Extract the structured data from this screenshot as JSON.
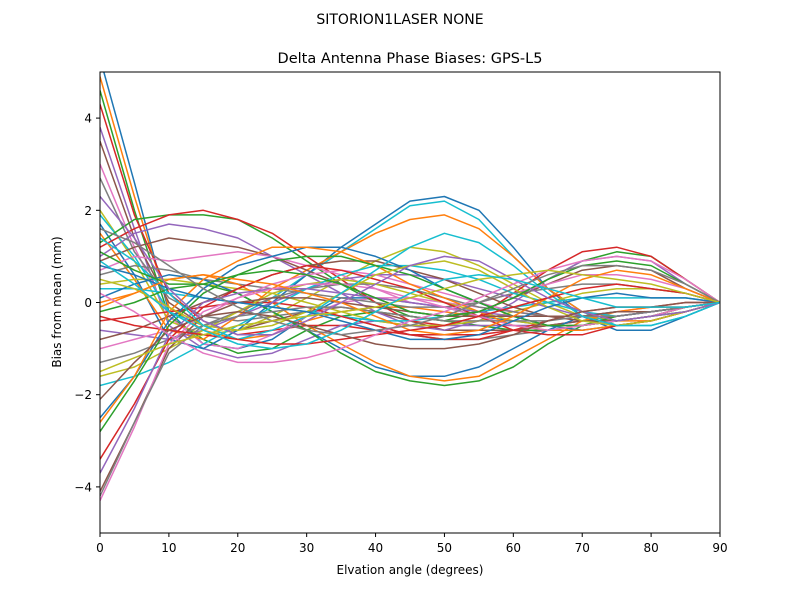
{
  "figure": {
    "suptitle": "SITORION1LASER  NONE"
  },
  "chart_data": {
    "type": "line",
    "title": "Delta Antenna Phase Biases: GPS-L5",
    "xlabel": "Elvation angle (degrees)",
    "ylabel": "Bias from mean (mm)",
    "xlim": [
      0,
      90
    ],
    "ylim": [
      -5,
      5
    ],
    "xticks": [
      0,
      10,
      20,
      30,
      40,
      50,
      60,
      70,
      80,
      90
    ],
    "yticks": [
      -4,
      -2,
      0,
      2,
      4
    ],
    "grid": false,
    "legend": "none",
    "x": [
      0,
      5,
      10,
      15,
      20,
      25,
      30,
      35,
      40,
      45,
      50,
      55,
      60,
      65,
      70,
      75,
      80,
      85,
      90
    ],
    "colors": [
      "#1f77b4",
      "#ff7f0e",
      "#2ca02c",
      "#d62728",
      "#9467bd",
      "#8c564b",
      "#e377c2",
      "#7f7f7f",
      "#bcbd22",
      "#17becf"
    ],
    "series": [
      {
        "values": [
          5.3,
          2.6,
          -0.2,
          -0.9,
          -1.0,
          -0.8,
          -0.3,
          0.1,
          0.1,
          0.0,
          -0.1,
          -0.3,
          -0.4,
          -0.5,
          -0.5,
          -0.4,
          -0.3,
          -0.1,
          0.0
        ]
      },
      {
        "values": [
          4.9,
          2.3,
          -0.1,
          -0.6,
          -0.8,
          -0.7,
          -0.4,
          -0.2,
          -0.1,
          -0.1,
          -0.2,
          -0.3,
          -0.3,
          -0.3,
          -0.3,
          -0.3,
          -0.2,
          -0.1,
          0.0
        ]
      },
      {
        "values": [
          4.6,
          2.0,
          -0.3,
          -0.8,
          -1.1,
          -1.0,
          -0.6,
          -0.3,
          -0.2,
          -0.3,
          -0.4,
          -0.5,
          -0.6,
          -0.6,
          -0.5,
          -0.4,
          -0.3,
          -0.1,
          0.0
        ]
      },
      {
        "values": [
          4.3,
          1.9,
          0.2,
          -0.4,
          -0.7,
          -0.6,
          -0.5,
          -0.5,
          -0.6,
          -0.7,
          -0.7,
          -0.7,
          -0.6,
          -0.5,
          -0.4,
          -0.3,
          -0.2,
          -0.1,
          0.0
        ]
      },
      {
        "values": [
          3.8,
          1.6,
          -0.5,
          -1.0,
          -1.2,
          -1.1,
          -0.8,
          -0.5,
          -0.4,
          -0.5,
          -0.5,
          -0.5,
          -0.5,
          -0.5,
          -0.4,
          -0.3,
          -0.2,
          -0.1,
          0.0
        ]
      },
      {
        "values": [
          3.5,
          1.4,
          0.0,
          -0.5,
          -0.6,
          -0.4,
          -0.2,
          -0.1,
          -0.2,
          -0.4,
          -0.6,
          -0.6,
          -0.6,
          -0.5,
          -0.4,
          -0.3,
          -0.2,
          -0.1,
          0.0
        ]
      },
      {
        "values": [
          3.0,
          1.2,
          -0.3,
          -0.9,
          -1.0,
          -0.7,
          -0.3,
          0.0,
          0.1,
          0.1,
          0.0,
          -0.1,
          -0.2,
          -0.3,
          -0.3,
          -0.2,
          -0.1,
          -0.1,
          0.0
        ]
      },
      {
        "values": [
          2.7,
          1.1,
          0.1,
          -0.3,
          -0.4,
          -0.3,
          -0.2,
          -0.3,
          -0.5,
          -0.7,
          -0.8,
          -0.8,
          -0.7,
          -0.6,
          -0.5,
          -0.4,
          -0.3,
          -0.1,
          0.0
        ]
      },
      {
        "values": [
          2.0,
          0.9,
          -0.4,
          -0.7,
          -0.6,
          -0.3,
          0.1,
          0.5,
          0.9,
          1.2,
          1.1,
          0.8,
          0.4,
          0.0,
          -0.3,
          -0.4,
          -0.3,
          -0.2,
          0.0
        ]
      },
      {
        "values": [
          1.9,
          1.0,
          -0.2,
          -0.5,
          -0.3,
          0.1,
          0.6,
          1.1,
          1.6,
          2.1,
          2.2,
          1.8,
          1.0,
          0.3,
          -0.2,
          -0.5,
          -0.5,
          -0.3,
          0.0
        ]
      },
      {
        "values": [
          1.7,
          0.6,
          -0.8,
          -1.0,
          -0.6,
          0.0,
          0.6,
          1.2,
          1.7,
          2.2,
          2.3,
          2.0,
          1.2,
          0.3,
          -0.3,
          -0.6,
          -0.6,
          -0.3,
          0.0
        ]
      },
      {
        "values": [
          1.5,
          0.5,
          -0.6,
          -0.8,
          -0.3,
          0.3,
          0.7,
          1.1,
          1.5,
          1.8,
          1.9,
          1.6,
          1.0,
          0.3,
          -0.2,
          -0.4,
          -0.4,
          -0.2,
          0.0
        ]
      },
      {
        "values": [
          1.3,
          1.8,
          1.9,
          1.9,
          1.8,
          1.4,
          0.9,
          0.4,
          0.0,
          -0.3,
          -0.4,
          -0.2,
          0.1,
          0.5,
          0.9,
          1.1,
          1.0,
          0.5,
          0.0
        ]
      },
      {
        "values": [
          1.2,
          1.6,
          1.9,
          2.0,
          1.8,
          1.5,
          1.0,
          0.5,
          0.0,
          -0.4,
          -0.5,
          -0.3,
          0.2,
          0.7,
          1.1,
          1.2,
          1.0,
          0.5,
          0.0
        ]
      },
      {
        "values": [
          1.0,
          1.5,
          1.7,
          1.6,
          1.4,
          1.0,
          0.6,
          0.2,
          -0.2,
          -0.5,
          -0.6,
          -0.4,
          0.0,
          0.5,
          0.9,
          1.0,
          0.9,
          0.4,
          0.0
        ]
      },
      {
        "values": [
          0.9,
          1.2,
          1.4,
          1.3,
          1.2,
          1.0,
          0.7,
          0.4,
          0.1,
          -0.2,
          -0.3,
          -0.2,
          0.1,
          0.4,
          0.7,
          0.8,
          0.7,
          0.3,
          0.0
        ]
      },
      {
        "values": [
          0.7,
          1.0,
          0.9,
          1.0,
          1.1,
          1.0,
          0.8,
          0.6,
          0.3,
          0.0,
          -0.1,
          0.0,
          0.2,
          0.4,
          0.6,
          0.6,
          0.5,
          0.3,
          0.0
        ]
      },
      {
        "values": [
          0.6,
          0.8,
          0.7,
          0.5,
          0.4,
          0.3,
          0.2,
          0.1,
          0.0,
          -0.1,
          -0.1,
          0.0,
          0.2,
          0.3,
          0.4,
          0.4,
          0.3,
          0.2,
          0.0
        ]
      },
      {
        "values": [
          0.4,
          0.5,
          0.5,
          0.4,
          0.3,
          0.2,
          0.0,
          -0.2,
          -0.4,
          -0.5,
          -0.5,
          -0.4,
          -0.2,
          0.0,
          0.2,
          0.3,
          0.3,
          0.2,
          0.0
        ]
      },
      {
        "values": [
          0.3,
          0.3,
          0.2,
          0.1,
          0.0,
          -0.1,
          -0.2,
          -0.3,
          -0.4,
          -0.4,
          -0.3,
          -0.2,
          -0.1,
          0.0,
          0.1,
          0.1,
          0.1,
          0.1,
          0.0
        ]
      },
      {
        "values": [
          0.1,
          0.4,
          0.6,
          0.5,
          0.2,
          -0.2,
          -0.6,
          -1.0,
          -1.4,
          -1.6,
          -1.6,
          -1.4,
          -1.0,
          -0.6,
          -0.3,
          -0.2,
          -0.2,
          -0.1,
          0.0
        ]
      },
      {
        "values": [
          0.0,
          0.2,
          0.5,
          0.6,
          0.4,
          0.0,
          -0.5,
          -0.9,
          -1.3,
          -1.6,
          -1.7,
          -1.6,
          -1.2,
          -0.8,
          -0.4,
          -0.2,
          -0.1,
          -0.1,
          0.0
        ]
      },
      {
        "values": [
          -0.2,
          0.0,
          0.3,
          0.4,
          0.2,
          -0.2,
          -0.6,
          -1.1,
          -1.5,
          -1.7,
          -1.8,
          -1.7,
          -1.4,
          -0.9,
          -0.5,
          -0.3,
          -0.2,
          -0.1,
          0.0
        ]
      },
      {
        "values": [
          -0.4,
          -0.3,
          -0.2,
          -0.1,
          0.0,
          0.0,
          -0.1,
          -0.3,
          -0.5,
          -0.7,
          -0.8,
          -0.8,
          -0.6,
          -0.4,
          -0.2,
          -0.1,
          -0.1,
          0.0,
          0.0
        ]
      },
      {
        "values": [
          -0.6,
          -0.7,
          -0.8,
          -0.6,
          -0.3,
          0.0,
          0.3,
          0.5,
          0.6,
          0.6,
          0.5,
          0.3,
          0.1,
          -0.1,
          -0.3,
          -0.3,
          -0.2,
          -0.1,
          0.0
        ]
      },
      {
        "values": [
          -0.8,
          -0.6,
          -0.3,
          0.0,
          0.3,
          0.6,
          0.8,
          0.9,
          0.9,
          0.7,
          0.5,
          0.2,
          -0.1,
          -0.3,
          -0.4,
          -0.4,
          -0.3,
          -0.1,
          0.0
        ]
      },
      {
        "values": [
          -1.0,
          -0.8,
          -0.6,
          -0.3,
          0.1,
          0.4,
          0.6,
          0.7,
          0.6,
          0.4,
          0.2,
          0.0,
          -0.2,
          -0.3,
          -0.3,
          -0.3,
          -0.2,
          -0.1,
          0.0
        ]
      },
      {
        "values": [
          -1.3,
          -1.1,
          -0.8,
          -0.5,
          -0.2,
          0.1,
          0.3,
          0.4,
          0.4,
          0.3,
          0.1,
          -0.1,
          -0.2,
          -0.3,
          -0.3,
          -0.2,
          -0.2,
          -0.1,
          0.0
        ]
      },
      {
        "values": [
          -1.6,
          -1.4,
          -1.0,
          -0.6,
          -0.2,
          0.2,
          0.4,
          0.5,
          0.4,
          0.2,
          0.0,
          -0.2,
          -0.4,
          -0.5,
          -0.5,
          -0.4,
          -0.3,
          -0.1,
          0.0
        ]
      },
      {
        "values": [
          -1.8,
          -1.6,
          -1.3,
          -0.9,
          -0.5,
          -0.1,
          0.3,
          0.6,
          0.8,
          0.8,
          0.7,
          0.5,
          0.2,
          0.0,
          -0.2,
          -0.3,
          -0.2,
          -0.1,
          0.0
        ]
      },
      {
        "values": [
          -2.5,
          -1.6,
          -0.4,
          0.3,
          0.8,
          1.0,
          1.2,
          1.2,
          1.0,
          0.7,
          0.3,
          0.0,
          -0.3,
          -0.5,
          -0.6,
          -0.5,
          -0.4,
          -0.2,
          0.0
        ]
      },
      {
        "values": [
          -2.6,
          -1.6,
          -0.2,
          0.5,
          0.9,
          1.2,
          1.2,
          1.1,
          0.8,
          0.4,
          0.1,
          -0.2,
          -0.5,
          -0.6,
          -0.6,
          -0.5,
          -0.4,
          -0.2,
          0.0
        ]
      },
      {
        "values": [
          -2.8,
          -1.7,
          -0.5,
          0.2,
          0.6,
          0.9,
          1.0,
          1.0,
          0.8,
          0.6,
          0.3,
          0.0,
          -0.3,
          -0.5,
          -0.5,
          -0.4,
          -0.3,
          -0.2,
          0.0
        ]
      },
      {
        "values": [
          -3.4,
          -2.2,
          -0.8,
          -0.1,
          0.3,
          0.6,
          0.8,
          0.7,
          0.5,
          0.3,
          0.0,
          -0.3,
          -0.6,
          -0.7,
          -0.7,
          -0.5,
          -0.4,
          -0.2,
          0.0
        ]
      },
      {
        "values": [
          -3.7,
          -2.3,
          -0.7,
          0.0,
          0.2,
          0.3,
          0.3,
          0.2,
          0.1,
          0.0,
          -0.1,
          -0.2,
          -0.3,
          -0.3,
          -0.3,
          -0.3,
          -0.2,
          -0.1,
          0.0
        ]
      },
      {
        "values": [
          -4.1,
          -2.6,
          -1.0,
          -0.3,
          0.0,
          0.1,
          0.1,
          0.0,
          -0.1,
          -0.2,
          -0.3,
          -0.3,
          -0.3,
          -0.3,
          -0.3,
          -0.2,
          -0.2,
          -0.1,
          0.0
        ]
      },
      {
        "values": [
          -4.3,
          -2.7,
          -0.9,
          -0.2,
          0.1,
          0.3,
          0.4,
          0.4,
          0.3,
          0.1,
          -0.1,
          -0.3,
          -0.5,
          -0.6,
          -0.5,
          -0.4,
          -0.3,
          -0.1,
          0.0
        ]
      },
      {
        "values": [
          -4.2,
          -2.6,
          -1.1,
          -0.5,
          -0.3,
          -0.2,
          -0.1,
          -0.1,
          -0.2,
          -0.3,
          -0.4,
          -0.4,
          -0.4,
          -0.4,
          -0.3,
          -0.3,
          -0.2,
          -0.1,
          0.0
        ]
      },
      {
        "values": [
          0.5,
          0.3,
          -0.1,
          -0.5,
          -0.6,
          -0.5,
          -0.2,
          0.2,
          0.6,
          0.8,
          0.9,
          0.7,
          0.3,
          -0.1,
          -0.4,
          -0.5,
          -0.4,
          -0.2,
          0.0
        ]
      },
      {
        "values": [
          1.4,
          0.9,
          0.2,
          -0.5,
          -0.8,
          -0.6,
          -0.3,
          0.2,
          0.7,
          1.2,
          1.5,
          1.3,
          0.8,
          0.2,
          -0.3,
          -0.5,
          -0.5,
          -0.3,
          0.0
        ]
      },
      {
        "values": [
          0.8,
          0.6,
          0.3,
          0.1,
          0.0,
          -0.1,
          -0.2,
          -0.4,
          -0.6,
          -0.8,
          -0.8,
          -0.7,
          -0.4,
          -0.1,
          0.1,
          0.2,
          0.1,
          0.1,
          0.0
        ]
      },
      {
        "values": [
          -0.1,
          0.2,
          0.5,
          0.6,
          0.5,
          0.4,
          0.2,
          0.0,
          -0.3,
          -0.6,
          -0.7,
          -0.6,
          -0.3,
          0.1,
          0.5,
          0.7,
          0.6,
          0.3,
          0.0
        ]
      },
      {
        "values": [
          1.1,
          0.7,
          0.4,
          0.4,
          0.6,
          0.7,
          0.6,
          0.4,
          0.1,
          -0.2,
          -0.3,
          -0.2,
          0.1,
          0.5,
          0.8,
          0.9,
          0.8,
          0.4,
          0.0
        ]
      },
      {
        "values": [
          -0.3,
          -0.5,
          -0.6,
          -0.7,
          -0.8,
          -0.9,
          -0.9,
          -0.8,
          -0.7,
          -0.6,
          -0.5,
          -0.3,
          -0.1,
          0.1,
          0.3,
          0.4,
          0.3,
          0.2,
          0.0
        ]
      },
      {
        "values": [
          2.3,
          1.4,
          0.3,
          -0.4,
          -0.7,
          -0.7,
          -0.4,
          0.0,
          0.4,
          0.8,
          1.0,
          0.9,
          0.5,
          0.1,
          -0.2,
          -0.4,
          -0.3,
          -0.2,
          0.0
        ]
      },
      {
        "values": [
          -2.1,
          -1.3,
          -0.6,
          -0.3,
          -0.2,
          -0.3,
          -0.5,
          -0.7,
          -0.9,
          -1.0,
          -1.0,
          -0.9,
          -0.7,
          -0.4,
          -0.2,
          -0.1,
          -0.1,
          0.0,
          0.0
        ]
      },
      {
        "values": [
          0.2,
          -0.2,
          -0.7,
          -1.1,
          -1.3,
          -1.3,
          -1.2,
          -1.0,
          -0.7,
          -0.4,
          -0.2,
          0.1,
          0.4,
          0.7,
          0.9,
          1.0,
          0.9,
          0.5,
          0.0
        ]
      },
      {
        "values": [
          1.6,
          1.3,
          0.8,
          0.3,
          -0.1,
          -0.4,
          -0.6,
          -0.7,
          -0.6,
          -0.5,
          -0.3,
          0.0,
          0.3,
          0.6,
          0.8,
          0.8,
          0.7,
          0.4,
          0.0
        ]
      },
      {
        "values": [
          -1.5,
          -1.2,
          -0.9,
          -0.7,
          -0.5,
          -0.4,
          -0.3,
          -0.2,
          -0.1,
          0.1,
          0.3,
          0.5,
          0.6,
          0.7,
          0.6,
          0.5,
          0.4,
          0.2,
          0.0
        ]
      },
      {
        "values": [
          0.9,
          0.4,
          -0.2,
          -0.6,
          -0.9,
          -1.0,
          -0.9,
          -0.6,
          -0.2,
          0.2,
          0.5,
          0.6,
          0.5,
          0.3,
          0.1,
          -0.1,
          -0.1,
          -0.1,
          0.0
        ]
      }
    ]
  }
}
